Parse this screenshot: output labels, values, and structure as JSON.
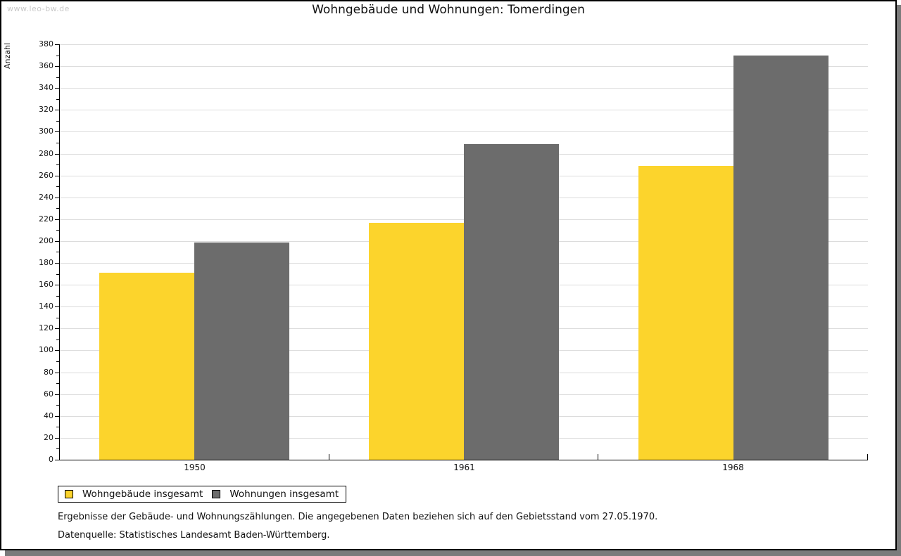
{
  "watermark": "www.leo-bw.de",
  "chart_data": {
    "type": "bar",
    "title": "Wohngebäude und Wohnungen: Tomerdingen",
    "xlabel": "",
    "ylabel": "Anzahl",
    "categories": [
      "1950",
      "1961",
      "1968"
    ],
    "series": [
      {
        "name": "Wohngebäude insgesamt",
        "color": "#fcd42c",
        "values": [
          171,
          217,
          269
        ]
      },
      {
        "name": "Wohnungen insgesamt",
        "color": "#6c6c6c",
        "values": [
          199,
          289,
          370
        ]
      }
    ],
    "ylim": [
      0,
      380
    ],
    "ytick_step": 20,
    "yminor_step": 10,
    "grid": true,
    "legend_position": "bottom-left"
  },
  "footer": {
    "line1": "Ergebnisse der Gebäude- und Wohnungszählungen. Die angegebenen Daten beziehen sich auf den Gebietsstand vom 27.05.1970.",
    "line2": "Datenquelle: Statistisches Landesamt Baden-Württemberg."
  },
  "colors": {
    "page_background": "#ffffff",
    "page_border": "#000000",
    "drop_shadow": "#7b7b7b",
    "gridline": "#dcdcdc",
    "axis": "#000000",
    "watermark_text": "#c9c9c9",
    "series_yellow": "#fcd42c",
    "series_gray": "#6c6c6c"
  }
}
